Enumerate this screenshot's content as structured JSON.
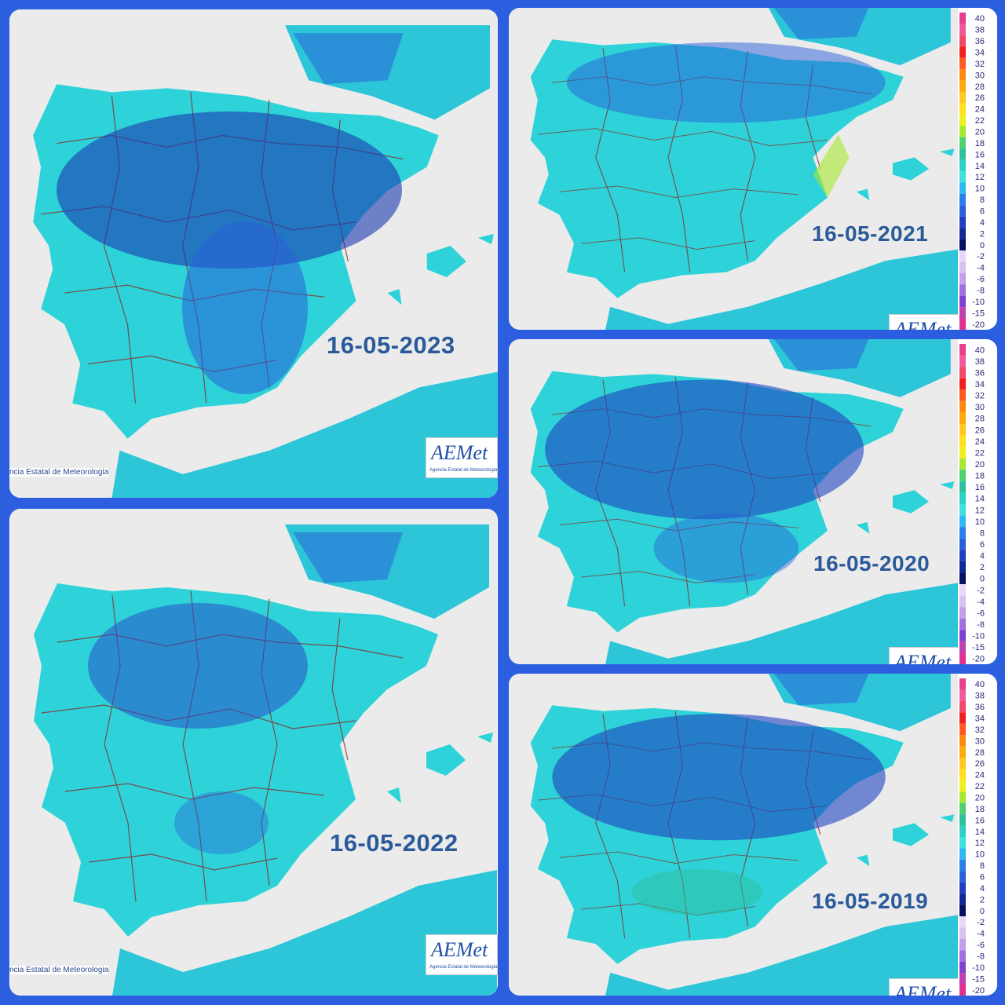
{
  "panels": [
    {
      "date": "16-05-2023",
      "footer": "ncia Estatal de Meteorologia"
    },
    {
      "date": "16-05-2022",
      "footer": "ncia Estatal de Meteorologia"
    },
    {
      "date": "16-05-2021"
    },
    {
      "date": "16-05-2020"
    },
    {
      "date": "16-05-2019"
    }
  ],
  "logo": {
    "main": "AEMet",
    "sub": "Agencia Estatal de Meteorologia"
  },
  "legend": {
    "labels": [
      "40",
      "38",
      "36",
      "34",
      "32",
      "30",
      "28",
      "26",
      "24",
      "22",
      "20",
      "18",
      "16",
      "14",
      "12",
      "10",
      "8",
      "6",
      "4",
      "2",
      "0",
      "-2",
      "-4",
      "-6",
      "-8",
      "-10",
      "-15",
      "-20"
    ],
    "colors": [
      "#e8408a",
      "#f05a9c",
      "#f04a6a",
      "#f02020",
      "#ff5a20",
      "#ff8a10",
      "#ffaa10",
      "#ffc820",
      "#ffe020",
      "#f0f020",
      "#a8e830",
      "#50d070",
      "#30c0a0",
      "#30d0c8",
      "#40e0e0",
      "#30b8f0",
      "#2a80e8",
      "#2a60d8",
      "#2040c0",
      "#102898",
      "#0a1060",
      "#e8d8f8",
      "#d8c0f0",
      "#c0a0e8",
      "#a070e0",
      "#8040d0",
      "#c040b0",
      "#e03090"
    ]
  }
}
